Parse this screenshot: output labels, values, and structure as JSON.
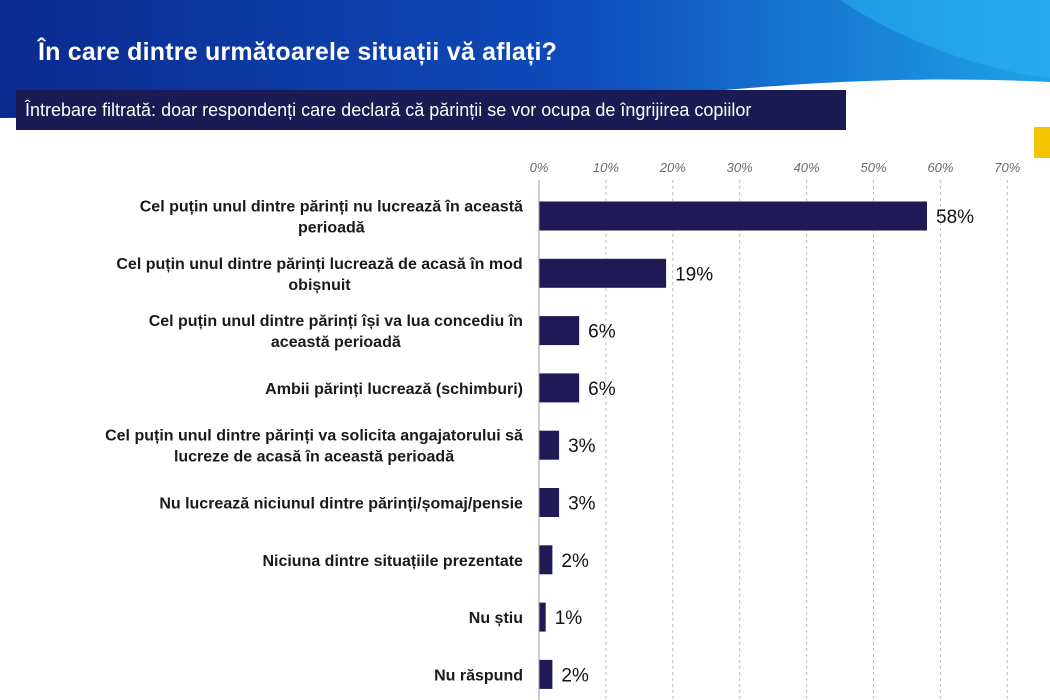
{
  "header": {
    "title": "În care dintre următoarele situații vă aflați?",
    "subtitle": "Întrebare filtrată: doar respondenți care declară că părinții se vor ocupa de îngrijirea copiilor"
  },
  "colors": {
    "banner_dark": "#0b2a8f",
    "banner_light": "#1fa3e8",
    "subtitle_bg": "#1b1a52",
    "bar": "#1f1a55",
    "grid": "#bdbdbd",
    "accent_yellow": "#f4c400"
  },
  "chart_data": {
    "type": "bar",
    "orientation": "horizontal",
    "categories": [
      [
        "Cel puțin unul dintre părinți nu lucrează în această",
        "perioadă"
      ],
      [
        "Cel puțin unul dintre părinți lucrează de acasă în mod",
        "obișnuit"
      ],
      [
        "Cel puțin unul dintre părinți își va lua concediu în",
        "această perioadă"
      ],
      [
        "Ambii părinți lucrează (schimburi)"
      ],
      [
        "Cel puțin unul dintre părinți va solicita angajatorului să",
        "lucreze de acasă în această perioadă"
      ],
      [
        "Nu lucrează niciunul dintre părinți/șomaj/pensie"
      ],
      [
        "Niciuna dintre situațiile prezentate"
      ],
      [
        "Nu știu"
      ],
      [
        "Nu răspund"
      ]
    ],
    "values": [
      58,
      19,
      6,
      6,
      3,
      3,
      2,
      1,
      2
    ],
    "value_labels": [
      "58%",
      "19%",
      "6%",
      "6%",
      "3%",
      "3%",
      "2%",
      "1%",
      "2%"
    ],
    "xlim": [
      0,
      70
    ],
    "ticks": [
      0,
      10,
      20,
      30,
      40,
      50,
      60,
      70
    ],
    "tick_labels": [
      "0%",
      "10%",
      "20%",
      "30%",
      "40%",
      "50%",
      "60%",
      "70%"
    ],
    "grid": true,
    "axis_position": "top"
  }
}
